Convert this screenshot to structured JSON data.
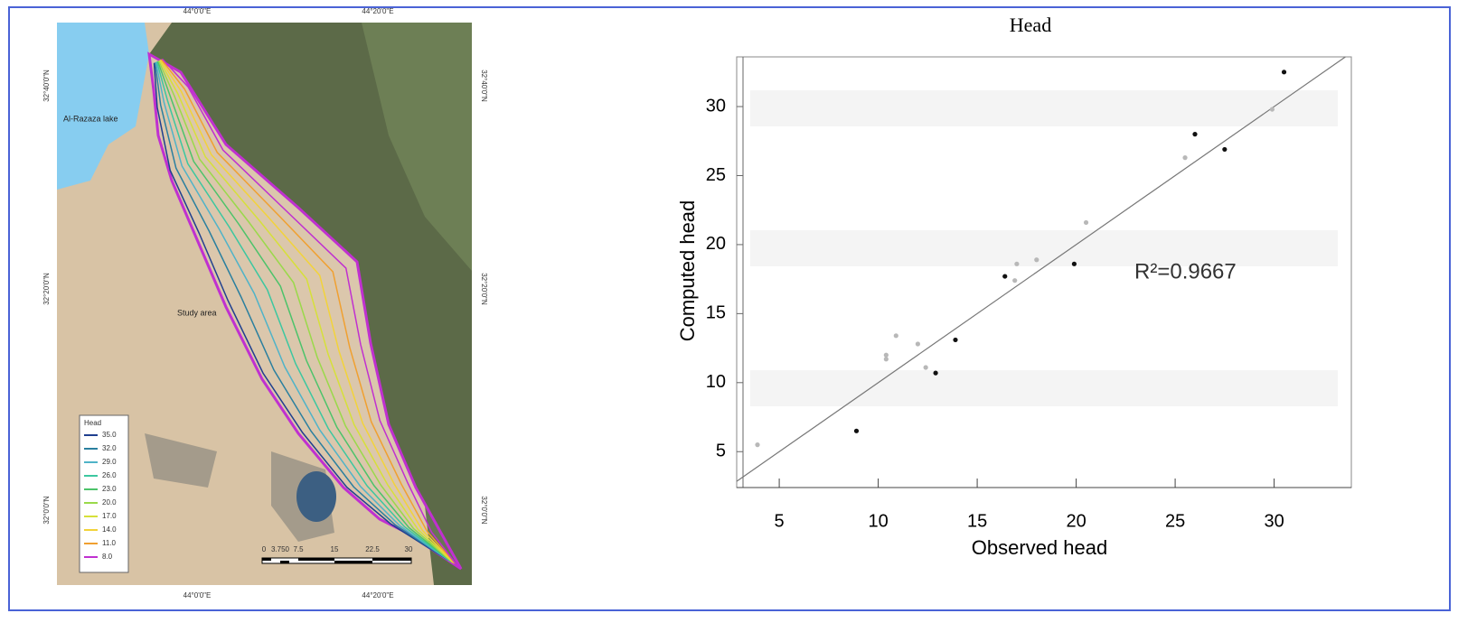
{
  "map": {
    "lon_labels": [
      "44°0'0\"E",
      "44°20'0\"E"
    ],
    "lat_labels": [
      "32°40'0\"N",
      "32°20'0\"N",
      "32°0'0\"N"
    ],
    "lake_label": "Al-Razaza lake",
    "area_label": "Study area",
    "legend_title": "Head",
    "legend": [
      {
        "label": "35.0",
        "color": "#1f3f8f"
      },
      {
        "label": "32.0",
        "color": "#2a7f9f"
      },
      {
        "label": "29.0",
        "color": "#4fb3c8"
      },
      {
        "label": "26.0",
        "color": "#3cc7a0"
      },
      {
        "label": "23.0",
        "color": "#4cc36a"
      },
      {
        "label": "20.0",
        "color": "#9ad94a"
      },
      {
        "label": "17.0",
        "color": "#d6e03a"
      },
      {
        "label": "14.0",
        "color": "#f2d33a"
      },
      {
        "label": "11.0",
        "color": "#f0a030"
      },
      {
        "label": "8.0",
        "color": "#c030d0"
      }
    ],
    "scale_labels": [
      "0",
      "3.750",
      "7.5",
      "15",
      "22.5",
      "30"
    ]
  },
  "chart_data": {
    "type": "scatter",
    "title": "Head",
    "x_label": "Observed head",
    "y_label": "Computed head",
    "annotation": "R²=0.9667",
    "xlim": [
      2.85,
      33.9
    ],
    "ylim": [
      2.4,
      33.6
    ],
    "xticks": [
      5,
      10,
      15,
      20,
      25,
      30
    ],
    "yticks": [
      5,
      10,
      15,
      20,
      25,
      30
    ],
    "grid": false,
    "series": [
      {
        "color": "#111111",
        "x": [
          8.9,
          12.9,
          13.9,
          16.4,
          19.9,
          26.0,
          27.5,
          30.5
        ],
        "values": [
          6.5,
          10.7,
          13.1,
          17.7,
          18.6,
          28.0,
          26.9,
          32.5
        ]
      },
      {
        "color": "#b8b8b8",
        "x": [
          3.9,
          10.4,
          10.4,
          10.9,
          12.0,
          12.4,
          17.0,
          16.9,
          18.0,
          20.5,
          25.5,
          29.9
        ],
        "values": [
          5.5,
          12.0,
          11.7,
          13.4,
          12.8,
          11.1,
          18.6,
          17.4,
          18.9,
          21.6,
          26.3,
          29.8
        ]
      }
    ]
  }
}
